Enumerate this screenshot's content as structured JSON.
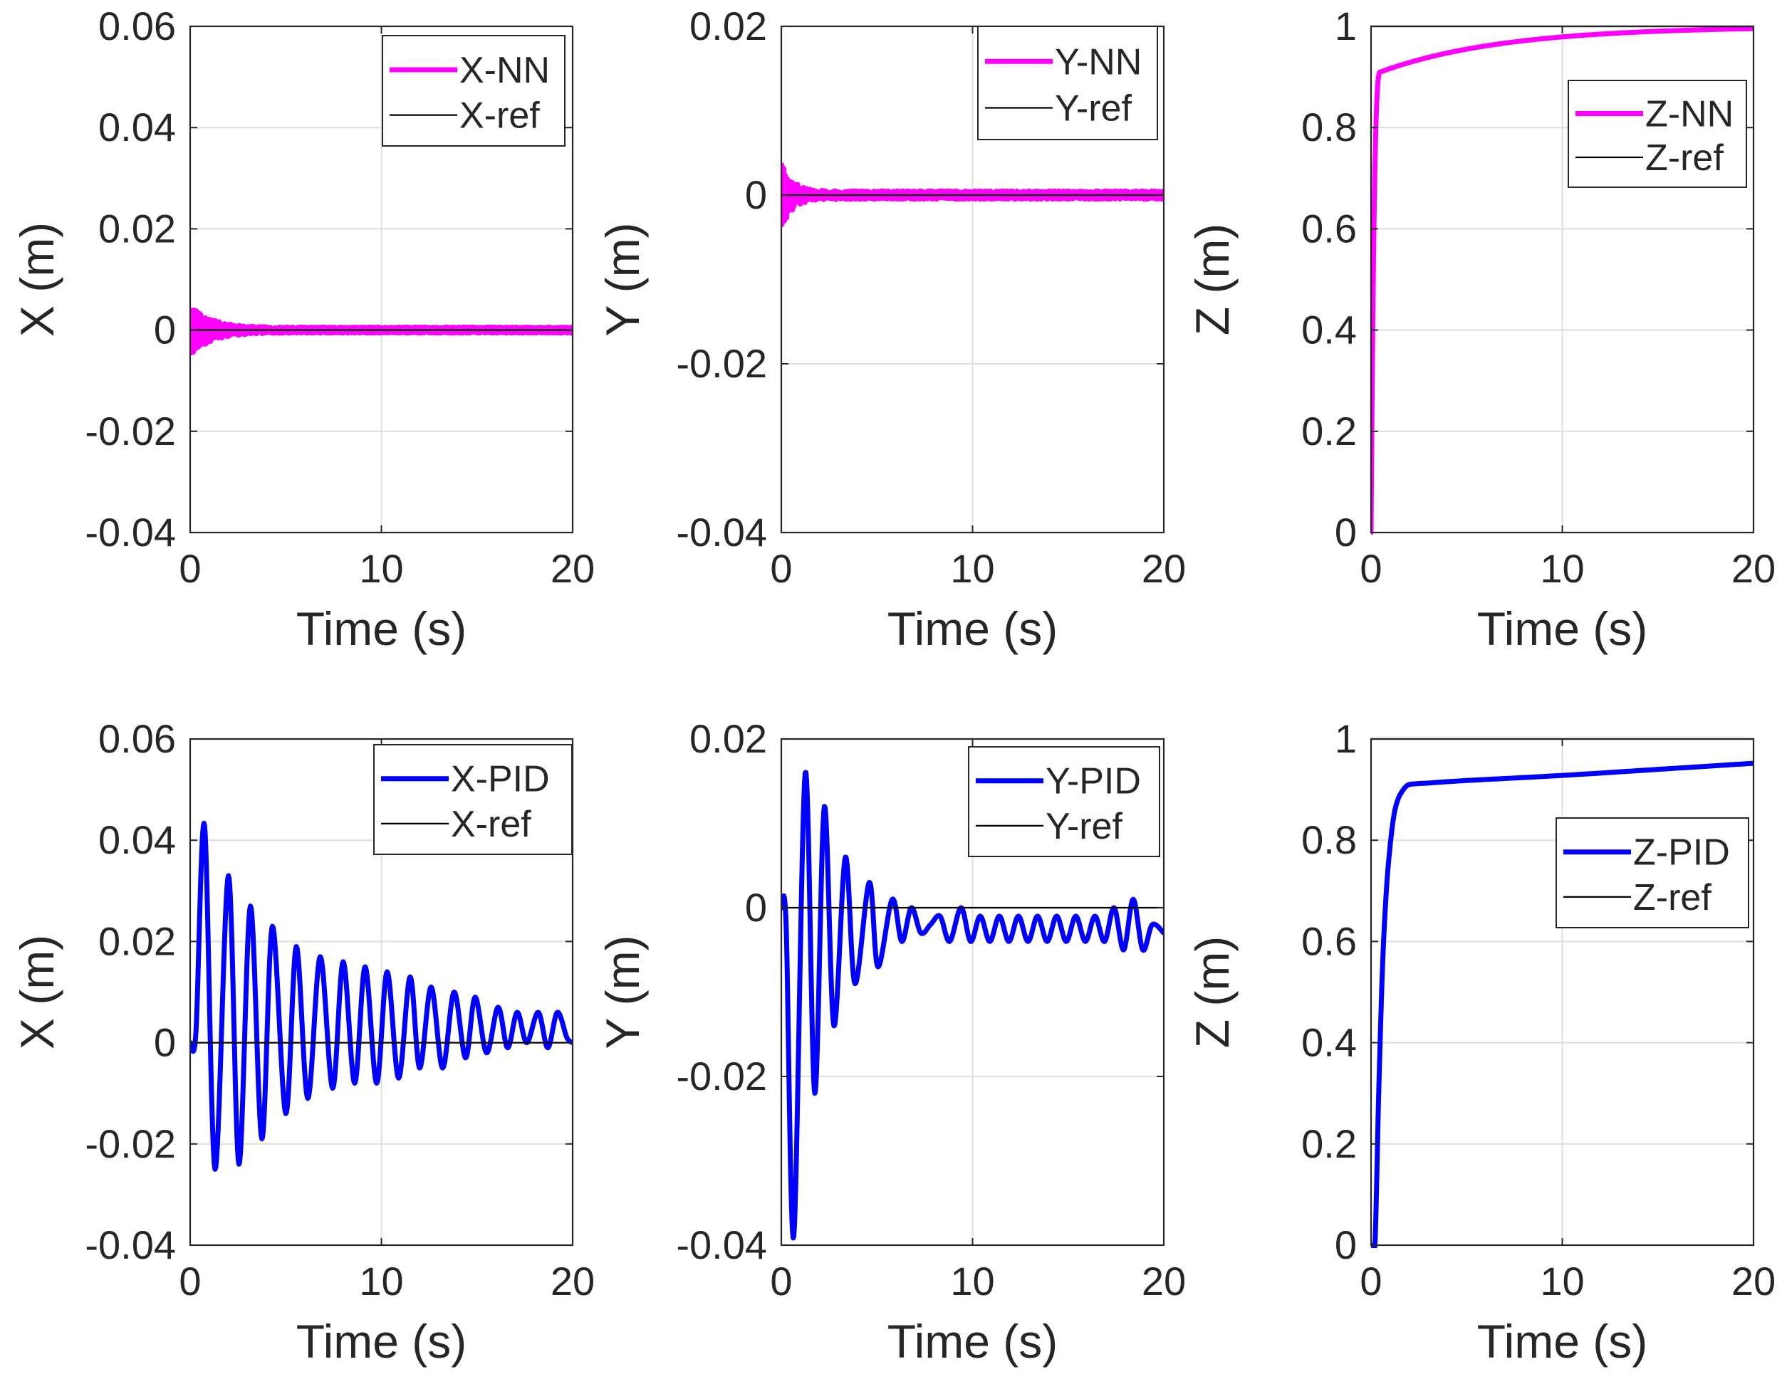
{
  "chart_data": [
    {
      "id": "x-nn",
      "type": "line",
      "xlabel": "Time (s)",
      "ylabel": "X (m)",
      "xlim": [
        0,
        20
      ],
      "ylim": [
        -0.04,
        0.06
      ],
      "xticks": [
        "0",
        "10",
        "20"
      ],
      "yticks": [
        "-0.04",
        "-0.02",
        "0",
        "0.02",
        "0.04",
        "0.06"
      ],
      "grid": true,
      "legend_position": "top-right",
      "series": [
        {
          "name": "X-NN",
          "color": "#ff00ff",
          "width": "thick",
          "signal": {
            "kind": "osc",
            "amplitude": 0.0045,
            "decay": 0.9,
            "period": 0.06,
            "noise": 0.0006
          }
        },
        {
          "name": "X-ref",
          "color": "#000000",
          "width": "thin",
          "signal": {
            "kind": "const",
            "value": 0
          }
        }
      ]
    },
    {
      "id": "y-nn",
      "type": "line",
      "xlabel": "Time (s)",
      "ylabel": "Y (m)",
      "xlim": [
        0,
        20
      ],
      "ylim": [
        -0.04,
        0.02
      ],
      "xticks": [
        "0",
        "10",
        "20"
      ],
      "yticks": [
        "-0.04",
        "-0.02",
        "0",
        "0.02"
      ],
      "grid": true,
      "legend_position": "top-right",
      "series": [
        {
          "name": "Y-NN",
          "color": "#ff00ff",
          "width": "thick",
          "signal": {
            "kind": "osc",
            "amplitude": 0.0035,
            "decay": 1.6,
            "period": 0.06,
            "noise": 0.0005
          }
        },
        {
          "name": "Y-ref",
          "color": "#000000",
          "width": "thin",
          "signal": {
            "kind": "const",
            "value": 0
          }
        }
      ]
    },
    {
      "id": "z-nn",
      "type": "line",
      "xlabel": "Time (s)",
      "ylabel": "Z (m)",
      "xlim": [
        0,
        20
      ],
      "ylim": [
        0,
        1
      ],
      "xticks": [
        "0",
        "10",
        "20"
      ],
      "yticks": [
        "0",
        "0.2",
        "0.4",
        "0.6",
        "0.8",
        "1"
      ],
      "grid": true,
      "legend_position": "upper-right",
      "series": [
        {
          "name": "Z-NN",
          "color": "#ff00ff",
          "width": "thick",
          "signal": {
            "kind": "rise",
            "rise_time": 0.5,
            "knee": 0.91,
            "final": 1.0,
            "slow_tau": 6.5
          }
        },
        {
          "name": "Z-ref",
          "color": "#000000",
          "width": "thin",
          "signal": {
            "kind": "const",
            "value": 1
          }
        }
      ]
    },
    {
      "id": "x-pid",
      "type": "line",
      "xlabel": "Time (s)",
      "ylabel": "X (m)",
      "xlim": [
        0,
        20
      ],
      "ylim": [
        -0.04,
        0.06
      ],
      "xticks": [
        "0",
        "10",
        "20"
      ],
      "yticks": [
        "-0.04",
        "-0.02",
        "0",
        "0.02",
        "0.04",
        "0.06"
      ],
      "grid": true,
      "legend_position": "top-right",
      "series": [
        {
          "name": "X-PID",
          "color": "#0000ff",
          "width": "thick",
          "signal": {
            "kind": "points",
            "x": [
              0,
              0.3,
              0.75,
              1.3,
              2.0,
              2.55,
              3.15,
              3.75,
              4.3,
              5.0,
              5.55,
              6.15,
              6.8,
              7.45,
              8.0,
              8.6,
              9.15,
              9.75,
              10.3,
              10.9,
              11.5,
              12.0,
              12.6,
              13.2,
              13.8,
              14.4,
              14.9,
              15.5,
              16.1,
              16.6,
              17.1,
              17.6,
              18.2,
              18.7,
              19.2,
              19.7,
              20.0
            ],
            "y": [
              0,
              0.002,
              0.043,
              -0.025,
              0.033,
              -0.024,
              0.027,
              -0.019,
              0.023,
              -0.014,
              0.019,
              -0.011,
              0.017,
              -0.009,
              0.016,
              -0.008,
              0.015,
              -0.008,
              0.014,
              -0.007,
              0.013,
              -0.005,
              0.011,
              -0.005,
              0.01,
              -0.003,
              0.009,
              -0.002,
              0.007,
              -0.001,
              0.006,
              0.0,
              0.006,
              -0.001,
              0.006,
              0.001,
              0.0
            ]
          }
        },
        {
          "name": "X-ref",
          "color": "#000000",
          "width": "thin",
          "signal": {
            "kind": "const",
            "value": 0
          }
        }
      ]
    },
    {
      "id": "y-pid",
      "type": "line",
      "xlabel": "Time (s)",
      "ylabel": "Y (m)",
      "xlim": [
        0,
        20
      ],
      "ylim": [
        -0.04,
        0.02
      ],
      "xticks": [
        "0",
        "10",
        "20"
      ],
      "yticks": [
        "-0.04",
        "-0.02",
        "0",
        "0.02"
      ],
      "grid": true,
      "legend_position": "top-right",
      "series": [
        {
          "name": "Y-PID",
          "color": "#0000ff",
          "width": "thick",
          "signal": {
            "kind": "points",
            "x": [
              0,
              0.25,
              0.65,
              1.25,
              1.75,
              2.25,
              2.75,
              3.35,
              3.85,
              4.6,
              5.05,
              5.8,
              6.3,
              6.8,
              7.3,
              7.8,
              8.3,
              8.8,
              9.4,
              9.9,
              10.4,
              10.9,
              11.4,
              11.9,
              12.4,
              12.9,
              13.4,
              13.9,
              14.4,
              14.9,
              15.4,
              15.9,
              16.4,
              16.9,
              17.4,
              17.9,
              18.4,
              18.9,
              19.4,
              20.0
            ],
            "y": [
              0,
              -0.002,
              -0.039,
              0.016,
              -0.022,
              0.012,
              -0.014,
              0.006,
              -0.009,
              0.003,
              -0.007,
              0.001,
              -0.004,
              0.0,
              -0.003,
              -0.002,
              -0.001,
              -0.004,
              0.0,
              -0.004,
              -0.001,
              -0.004,
              -0.001,
              -0.004,
              -0.001,
              -0.004,
              -0.001,
              -0.004,
              -0.001,
              -0.004,
              -0.001,
              -0.004,
              -0.001,
              -0.004,
              0.0,
              -0.005,
              0.001,
              -0.005,
              -0.002,
              -0.003
            ]
          }
        },
        {
          "name": "Y-ref",
          "color": "#000000",
          "width": "thin",
          "signal": {
            "kind": "const",
            "value": 0
          }
        }
      ]
    },
    {
      "id": "z-pid",
      "type": "line",
      "xlabel": "Time (s)",
      "ylabel": "Z (m)",
      "xlim": [
        0,
        20
      ],
      "ylim": [
        0,
        1
      ],
      "xticks": [
        "0",
        "10",
        "20"
      ],
      "yticks": [
        "0",
        "0.2",
        "0.4",
        "0.6",
        "0.8",
        "1"
      ],
      "grid": true,
      "legend_position": "middle-right",
      "series": [
        {
          "name": "Z-PID",
          "color": "#0000ff",
          "width": "thick",
          "signal": {
            "kind": "points",
            "x": [
              0,
              0.2,
              0.4,
              0.6,
              0.8,
              1.0,
              1.2,
              1.4,
              1.6,
              1.8,
              2.0,
              2.5,
              3.0,
              5.0,
              10.0,
              15.0,
              20.0
            ],
            "y": [
              0,
              0.0,
              0.3,
              0.55,
              0.7,
              0.79,
              0.85,
              0.88,
              0.895,
              0.905,
              0.91,
              0.912,
              0.913,
              0.918,
              0.928,
              0.94,
              0.952
            ]
          }
        },
        {
          "name": "Z-ref",
          "color": "#000000",
          "width": "thin",
          "signal": {
            "kind": "const",
            "value": 1
          }
        }
      ]
    }
  ]
}
